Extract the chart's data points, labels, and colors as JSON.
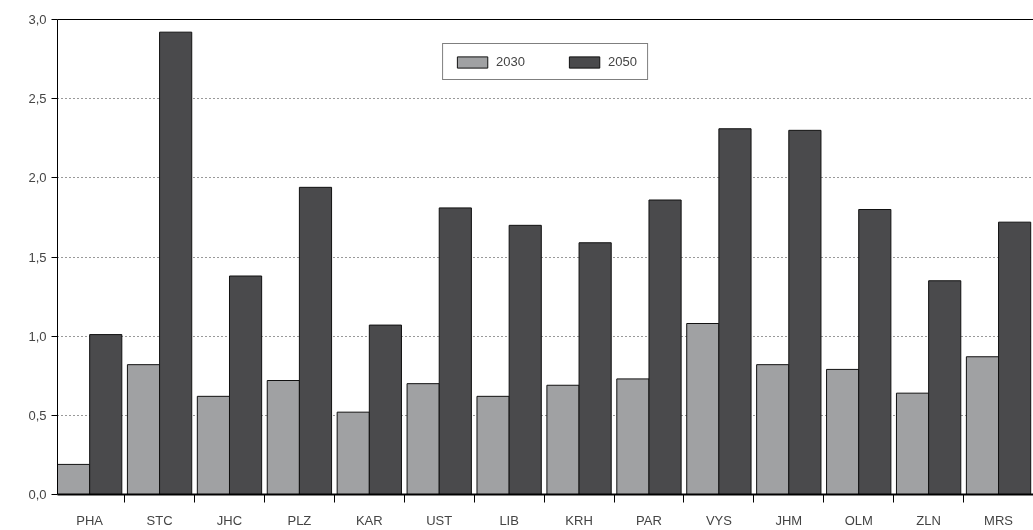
{
  "chart_data": {
    "type": "bar",
    "categories": [
      "PHA",
      "STC",
      "JHC",
      "PLZ",
      "KAR",
      "UST",
      "LIB",
      "KRH",
      "PAR",
      "VYS",
      "JHM",
      "OLM",
      "ZLN",
      "MRS"
    ],
    "series": [
      {
        "name": "2030",
        "color": "#a0a1a3",
        "values": [
          0.19,
          0.82,
          0.62,
          0.72,
          0.52,
          0.7,
          0.62,
          0.69,
          0.73,
          1.08,
          0.82,
          0.79,
          0.64,
          0.87
        ]
      },
      {
        "name": "2050",
        "color": "#4a4a4c",
        "values": [
          1.01,
          2.92,
          1.38,
          1.94,
          1.07,
          1.81,
          1.7,
          1.59,
          1.86,
          2.31,
          2.3,
          1.8,
          1.35,
          1.72
        ]
      }
    ],
    "ylim": [
      0,
      3
    ],
    "yticks": [
      {
        "value": 0,
        "label": "0,0"
      },
      {
        "value": 0.5,
        "label": "0,5"
      },
      {
        "value": 1,
        "label": "1,0"
      },
      {
        "value": 1.5,
        "label": "1,5"
      },
      {
        "value": 2,
        "label": "2,0"
      },
      {
        "value": 2.5,
        "label": "2,5"
      },
      {
        "value": 3,
        "label": "3,0"
      }
    ],
    "grid": "y",
    "legend": "top"
  }
}
